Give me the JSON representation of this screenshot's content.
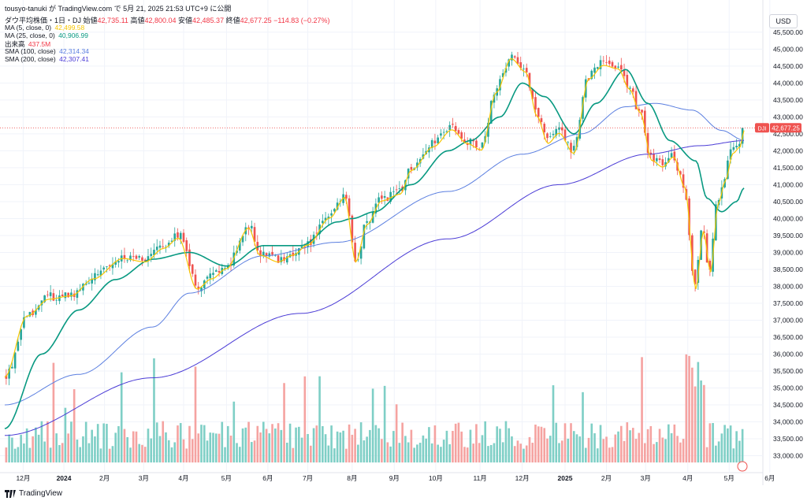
{
  "header": {
    "line": "tousyo-tanuki が TradingView.com で 5月 21, 2025 21:53 UTC+9 に公開",
    "symbol_title": "ダウ平均株価・1日・DJ",
    "open_label": "始値",
    "open_value": "42,735.11",
    "high_label": "高値",
    "high_value": "42,800.04",
    "low_label": "安値",
    "low_value": "42,485.37",
    "close_label": "終値",
    "close_value": "42,677.25",
    "change_value": "−114.83 (−0.27%)"
  },
  "indicators": [
    {
      "label": "MA (5, close, 0)",
      "value": "42,499.58",
      "color": "#f7c600"
    },
    {
      "label": "MA (25, close, 0)",
      "value": "40,906.99",
      "color": "#089981"
    },
    {
      "label": "出来高",
      "value": "437.5M",
      "color": "#f23645"
    },
    {
      "label": "SMA (100, close)",
      "value": "42,314.34",
      "color": "#5b7fe0"
    },
    {
      "label": "SMA (200, close)",
      "value": "42,307.41",
      "color": "#4b3cd6"
    }
  ],
  "currency": "USD",
  "price_label": {
    "symbol": "DJI",
    "value": "42,677.25"
  },
  "branding": "TradingView",
  "colors": {
    "up": "#26a69a",
    "down": "#ef5350",
    "ma5": "#f7c600",
    "ma25": "#089981",
    "sma100": "#5b7fe0",
    "sma200": "#4b3cd6",
    "volume_up": "#7fcfc6",
    "volume_down": "#f5a3a1"
  },
  "chart_data": {
    "type": "candlestick",
    "y_range": [
      32500,
      45800
    ],
    "y_ticks": [
      "33,000.00",
      "33,500.00",
      "34,000.00",
      "34,500.00",
      "35,000.00",
      "35,500.00",
      "36,000.00",
      "36,500.00",
      "37,000.00",
      "37,500.00",
      "38,000.00",
      "38,500.00",
      "39,000.00",
      "39,500.00",
      "40,000.00",
      "40,500.00",
      "41,000.00",
      "41,500.00",
      "42,000.00",
      "42,500.00",
      "43,000.00",
      "43,500.00",
      "44,000.00",
      "44,500.00",
      "45,000.00",
      "45,500.00"
    ],
    "x_ticks": [
      {
        "label": "12月",
        "t": 0.025,
        "bold": false
      },
      {
        "label": "2024",
        "t": 0.08,
        "bold": true
      },
      {
        "label": "2月",
        "t": 0.135,
        "bold": false
      },
      {
        "label": "3月",
        "t": 0.188,
        "bold": false
      },
      {
        "label": "4月",
        "t": 0.242,
        "bold": false
      },
      {
        "label": "5月",
        "t": 0.3,
        "bold": false
      },
      {
        "label": "6月",
        "t": 0.356,
        "bold": false
      },
      {
        "label": "7月",
        "t": 0.41,
        "bold": false
      },
      {
        "label": "8月",
        "t": 0.47,
        "bold": false
      },
      {
        "label": "9月",
        "t": 0.527,
        "bold": false
      },
      {
        "label": "10月",
        "t": 0.583,
        "bold": false
      },
      {
        "label": "11月",
        "t": 0.643,
        "bold": false
      },
      {
        "label": "12月",
        "t": 0.7,
        "bold": false
      },
      {
        "label": "2025",
        "t": 0.758,
        "bold": true
      },
      {
        "label": "2月",
        "t": 0.814,
        "bold": false
      },
      {
        "label": "3月",
        "t": 0.867,
        "bold": false
      },
      {
        "label": "4月",
        "t": 0.924,
        "bold": false
      },
      {
        "label": "5月",
        "t": 0.98,
        "bold": false
      },
      {
        "label": "6月",
        "t": 1.035,
        "bold": false
      }
    ],
    "close_anchors": [
      [
        0.0,
        35400
      ],
      [
        0.03,
        37200
      ],
      [
        0.06,
        37700
      ],
      [
        0.09,
        37800
      ],
      [
        0.12,
        38300
      ],
      [
        0.16,
        38900
      ],
      [
        0.19,
        38800
      ],
      [
        0.215,
        39200
      ],
      [
        0.235,
        39500
      ],
      [
        0.26,
        38000
      ],
      [
        0.28,
        38300
      ],
      [
        0.3,
        38600
      ],
      [
        0.33,
        39800
      ],
      [
        0.345,
        39000
      ],
      [
        0.37,
        38800
      ],
      [
        0.39,
        39000
      ],
      [
        0.41,
        39300
      ],
      [
        0.44,
        40100
      ],
      [
        0.46,
        40700
      ],
      [
        0.475,
        38800
      ],
      [
        0.49,
        39900
      ],
      [
        0.51,
        40600
      ],
      [
        0.535,
        40800
      ],
      [
        0.55,
        41500
      ],
      [
        0.58,
        42200
      ],
      [
        0.605,
        42700
      ],
      [
        0.625,
        42300
      ],
      [
        0.645,
        42100
      ],
      [
        0.665,
        43800
      ],
      [
        0.685,
        44800
      ],
      [
        0.705,
        44400
      ],
      [
        0.72,
        43100
      ],
      [
        0.735,
        42300
      ],
      [
        0.75,
        42600
      ],
      [
        0.77,
        42000
      ],
      [
        0.79,
        44200
      ],
      [
        0.81,
        44600
      ],
      [
        0.83,
        44500
      ],
      [
        0.845,
        43900
      ],
      [
        0.86,
        43200
      ],
      [
        0.875,
        41800
      ],
      [
        0.89,
        41600
      ],
      [
        0.905,
        41900
      ],
      [
        0.92,
        41000
      ],
      [
        0.935,
        38000
      ],
      [
        0.945,
        39700
      ],
      [
        0.955,
        38500
      ],
      [
        0.965,
        40500
      ],
      [
        0.975,
        41200
      ],
      [
        0.985,
        42000
      ],
      [
        0.995,
        42200
      ],
      [
        1.0,
        42680
      ]
    ],
    "sma200_anchors": [
      [
        0.0,
        33600
      ],
      [
        0.2,
        35300
      ],
      [
        0.4,
        37200
      ],
      [
        0.6,
        39400
      ],
      [
        0.75,
        41000
      ],
      [
        0.87,
        41900
      ],
      [
        0.94,
        42150
      ],
      [
        1.0,
        42300
      ]
    ],
    "sma100_anchors": [
      [
        0.0,
        34500
      ],
      [
        0.1,
        35400
      ],
      [
        0.2,
        36800
      ],
      [
        0.25,
        37800
      ],
      [
        0.35,
        38900
      ],
      [
        0.45,
        39300
      ],
      [
        0.6,
        40800
      ],
      [
        0.7,
        41900
      ],
      [
        0.78,
        42500
      ],
      [
        0.84,
        43300
      ],
      [
        0.88,
        43400
      ],
      [
        0.93,
        43200
      ],
      [
        0.97,
        42600
      ],
      [
        1.0,
        42310
      ]
    ],
    "ma25_anchors": [
      [
        0.0,
        33800
      ],
      [
        0.05,
        36000
      ],
      [
        0.1,
        37300
      ],
      [
        0.15,
        38200
      ],
      [
        0.2,
        38800
      ],
      [
        0.25,
        39000
      ],
      [
        0.3,
        38600
      ],
      [
        0.35,
        39200
      ],
      [
        0.4,
        39200
      ],
      [
        0.45,
        39900
      ],
      [
        0.47,
        40000
      ],
      [
        0.5,
        40200
      ],
      [
        0.55,
        41000
      ],
      [
        0.6,
        42000
      ],
      [
        0.63,
        42300
      ],
      [
        0.67,
        43000
      ],
      [
        0.7,
        44000
      ],
      [
        0.73,
        43600
      ],
      [
        0.77,
        42500
      ],
      [
        0.8,
        43400
      ],
      [
        0.84,
        44400
      ],
      [
        0.87,
        43400
      ],
      [
        0.9,
        42300
      ],
      [
        0.935,
        41700
      ],
      [
        0.95,
        40600
      ],
      [
        0.97,
        40200
      ],
      [
        0.99,
        40500
      ],
      [
        1.0,
        40900
      ]
    ],
    "candle_count": 250,
    "volume_band": {
      "top_price": 36100,
      "base_price": 32800
    }
  }
}
